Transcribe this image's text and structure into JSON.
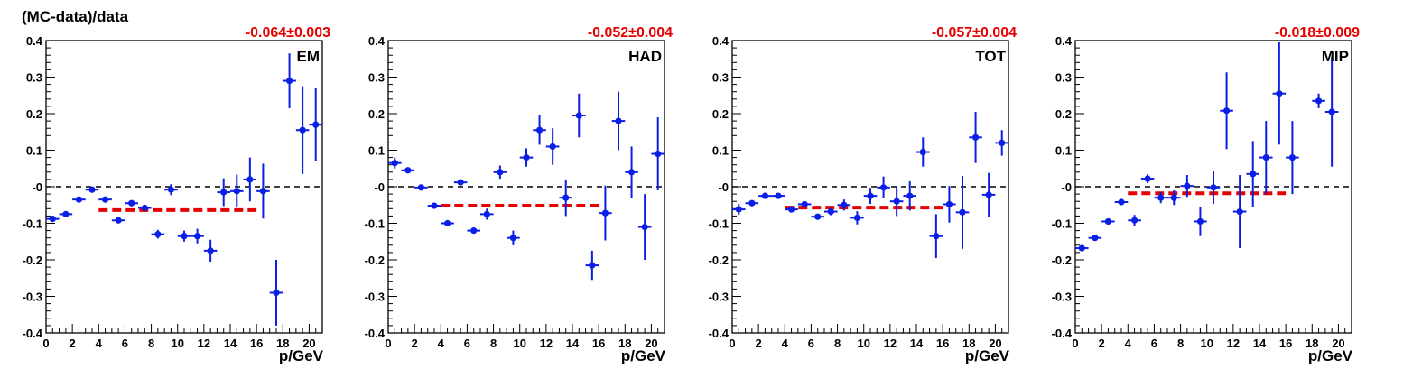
{
  "colors": {
    "points": "#0a1ee6",
    "fit": "#e60000",
    "zero_line": "#000000",
    "axes": "#000000"
  },
  "figure": {
    "ylabel": "(MC-data)/data"
  },
  "chart_data": [
    {
      "type": "scatter",
      "panel_label": "EM",
      "fit_text": "-0.064±0.003",
      "fit": {
        "value": -0.064,
        "x_range": [
          4,
          16
        ]
      },
      "xlabel": "p/GeV",
      "xlim": [
        0,
        21
      ],
      "ylim": [
        -0.4,
        0.4
      ],
      "x_ticks": [
        "0",
        "2",
        "4",
        "6",
        "8",
        "10",
        "12",
        "14",
        "16",
        "18",
        "20"
      ],
      "y_ticks": [
        "-0.4",
        "-0.3",
        "-0.2",
        "-0.1",
        "-0",
        "0.1",
        "0.2",
        "0.3",
        "0.4"
      ],
      "points": [
        {
          "x": 0.5,
          "y": -0.088,
          "ey": 0.008
        },
        {
          "x": 1.5,
          "y": -0.075,
          "ey": 0.006
        },
        {
          "x": 2.5,
          "y": -0.035,
          "ey": 0.006
        },
        {
          "x": 3.5,
          "y": -0.008,
          "ey": 0.006
        },
        {
          "x": 4.5,
          "y": -0.035,
          "ey": 0.007
        },
        {
          "x": 5.5,
          "y": -0.092,
          "ey": 0.006
        },
        {
          "x": 6.5,
          "y": -0.045,
          "ey": 0.007
        },
        {
          "x": 7.5,
          "y": -0.058,
          "ey": 0.008
        },
        {
          "x": 8.5,
          "y": -0.13,
          "ey": 0.012
        },
        {
          "x": 9.5,
          "y": -0.008,
          "ey": 0.015
        },
        {
          "x": 10.5,
          "y": -0.135,
          "ey": 0.015
        },
        {
          "x": 11.5,
          "y": -0.135,
          "ey": 0.02
        },
        {
          "x": 12.5,
          "y": -0.175,
          "ey": 0.03
        },
        {
          "x": 13.5,
          "y": -0.015,
          "ey": 0.038
        },
        {
          "x": 14.5,
          "y": -0.012,
          "ey": 0.045
        },
        {
          "x": 15.5,
          "y": 0.02,
          "ey": 0.06
        },
        {
          "x": 16.5,
          "y": -0.012,
          "ey": 0.075
        },
        {
          "x": 17.5,
          "y": -0.29,
          "ey": 0.09
        },
        {
          "x": 18.5,
          "y": 0.29,
          "ey": 0.075
        },
        {
          "x": 19.5,
          "y": 0.155,
          "ey": 0.12
        },
        {
          "x": 20.5,
          "y": 0.17,
          "ey": 0.1
        }
      ]
    },
    {
      "type": "scatter",
      "panel_label": "HAD",
      "fit_text": "-0.052±0.004",
      "fit": {
        "value": -0.052,
        "x_range": [
          4,
          16
        ]
      },
      "xlabel": "p/GeV",
      "xlim": [
        0,
        21
      ],
      "ylim": [
        -0.4,
        0.4
      ],
      "x_ticks": [
        "0",
        "2",
        "4",
        "6",
        "8",
        "10",
        "12",
        "14",
        "16",
        "18",
        "20"
      ],
      "y_ticks": [
        "-0.4",
        "-0.3",
        "-0.2",
        "-0.1",
        "-0",
        "0.1",
        "0.2",
        "0.3",
        "0.4"
      ],
      "points": [
        {
          "x": 0.5,
          "y": 0.065,
          "ey": 0.015
        },
        {
          "x": 1.5,
          "y": 0.045,
          "ey": 0.008
        },
        {
          "x": 2.5,
          "y": -0.002,
          "ey": 0.006
        },
        {
          "x": 3.5,
          "y": -0.052,
          "ey": 0.006
        },
        {
          "x": 4.5,
          "y": -0.1,
          "ey": 0.006
        },
        {
          "x": 5.5,
          "y": 0.012,
          "ey": 0.006
        },
        {
          "x": 6.5,
          "y": -0.12,
          "ey": 0.008
        },
        {
          "x": 7.5,
          "y": -0.075,
          "ey": 0.015
        },
        {
          "x": 8.5,
          "y": 0.04,
          "ey": 0.018
        },
        {
          "x": 9.5,
          "y": -0.14,
          "ey": 0.02
        },
        {
          "x": 10.5,
          "y": 0.08,
          "ey": 0.025
        },
        {
          "x": 11.5,
          "y": 0.155,
          "ey": 0.04
        },
        {
          "x": 12.5,
          "y": 0.11,
          "ey": 0.05
        },
        {
          "x": 13.5,
          "y": -0.03,
          "ey": 0.05
        },
        {
          "x": 14.5,
          "y": 0.195,
          "ey": 0.06
        },
        {
          "x": 15.5,
          "y": -0.215,
          "ey": 0.04
        },
        {
          "x": 16.5,
          "y": -0.072,
          "ey": 0.075
        },
        {
          "x": 17.5,
          "y": 0.18,
          "ey": 0.08
        },
        {
          "x": 18.5,
          "y": 0.04,
          "ey": 0.07
        },
        {
          "x": 19.5,
          "y": -0.11,
          "ey": 0.09
        },
        {
          "x": 20.5,
          "y": 0.09,
          "ey": 0.1
        }
      ]
    },
    {
      "type": "scatter",
      "panel_label": "TOT",
      "fit_text": "-0.057±0.004",
      "fit": {
        "value": -0.057,
        "x_range": [
          4,
          16
        ]
      },
      "xlabel": "p/GeV",
      "xlim": [
        0,
        21
      ],
      "ylim": [
        -0.4,
        0.4
      ],
      "x_ticks": [
        "0",
        "2",
        "4",
        "6",
        "8",
        "10",
        "12",
        "14",
        "16",
        "18",
        "20"
      ],
      "y_ticks": [
        "-0.4",
        "-0.3",
        "-0.2",
        "-0.1",
        "-0",
        "0.1",
        "0.2",
        "0.3",
        "0.4"
      ],
      "points": [
        {
          "x": 0.5,
          "y": -0.062,
          "ey": 0.015
        },
        {
          "x": 1.5,
          "y": -0.045,
          "ey": 0.008
        },
        {
          "x": 2.5,
          "y": -0.025,
          "ey": 0.006
        },
        {
          "x": 3.5,
          "y": -0.025,
          "ey": 0.006
        },
        {
          "x": 4.5,
          "y": -0.062,
          "ey": 0.006
        },
        {
          "x": 5.5,
          "y": -0.048,
          "ey": 0.006
        },
        {
          "x": 6.5,
          "y": -0.082,
          "ey": 0.008
        },
        {
          "x": 7.5,
          "y": -0.068,
          "ey": 0.01
        },
        {
          "x": 8.5,
          "y": -0.05,
          "ey": 0.015
        },
        {
          "x": 9.5,
          "y": -0.085,
          "ey": 0.018
        },
        {
          "x": 10.5,
          "y": -0.025,
          "ey": 0.022
        },
        {
          "x": 11.5,
          "y": -0.002,
          "ey": 0.03
        },
        {
          "x": 12.5,
          "y": -0.04,
          "ey": 0.04
        },
        {
          "x": 13.5,
          "y": -0.025,
          "ey": 0.04
        },
        {
          "x": 14.5,
          "y": 0.095,
          "ey": 0.04
        },
        {
          "x": 15.5,
          "y": -0.135,
          "ey": 0.06
        },
        {
          "x": 16.5,
          "y": -0.048,
          "ey": 0.05
        },
        {
          "x": 17.5,
          "y": -0.07,
          "ey": 0.1
        },
        {
          "x": 18.5,
          "y": 0.135,
          "ey": 0.07
        },
        {
          "x": 19.5,
          "y": -0.022,
          "ey": 0.06
        },
        {
          "x": 20.5,
          "y": 0.12,
          "ey": 0.035
        }
      ]
    },
    {
      "type": "scatter",
      "panel_label": "MIP",
      "fit_text": "-0.018±0.009",
      "fit": {
        "value": -0.018,
        "x_range": [
          4,
          16
        ]
      },
      "xlabel": "p/GeV",
      "xlim": [
        0,
        21
      ],
      "ylim": [
        -0.4,
        0.4
      ],
      "x_ticks": [
        "0",
        "2",
        "4",
        "6",
        "8",
        "10",
        "12",
        "14",
        "16",
        "18",
        "20"
      ],
      "y_ticks": [
        "-0.4",
        "-0.3",
        "-0.2",
        "-0.1",
        "-0",
        "0.1",
        "0.2",
        "0.3",
        "0.4"
      ],
      "points": [
        {
          "x": 0.5,
          "y": -0.168,
          "ey": 0.008
        },
        {
          "x": 1.5,
          "y": -0.14,
          "ey": 0.006
        },
        {
          "x": 2.5,
          "y": -0.095,
          "ey": 0.008
        },
        {
          "x": 3.5,
          "y": -0.042,
          "ey": 0.008
        },
        {
          "x": 4.5,
          "y": -0.092,
          "ey": 0.015
        },
        {
          "x": 5.5,
          "y": 0.022,
          "ey": 0.012
        },
        {
          "x": 6.5,
          "y": -0.03,
          "ey": 0.015
        },
        {
          "x": 7.5,
          "y": -0.03,
          "ey": 0.02
        },
        {
          "x": 8.5,
          "y": 0.002,
          "ey": 0.03
        },
        {
          "x": 9.5,
          "y": -0.095,
          "ey": 0.04
        },
        {
          "x": 10.5,
          "y": -0.002,
          "ey": 0.045
        },
        {
          "x": 11.5,
          "y": 0.208,
          "ey": 0.105
        },
        {
          "x": 12.5,
          "y": -0.068,
          "ey": 0.1
        },
        {
          "x": 13.5,
          "y": 0.035,
          "ey": 0.09
        },
        {
          "x": 14.5,
          "y": 0.08,
          "ey": 0.1
        },
        {
          "x": 15.5,
          "y": 0.255,
          "ey": 0.14
        },
        {
          "x": 16.5,
          "y": 0.08,
          "ey": 0.1
        },
        {
          "x": 18.5,
          "y": 0.235,
          "ey": 0.02
        },
        {
          "x": 19.5,
          "y": 0.205,
          "ey": 0.15
        }
      ]
    }
  ]
}
